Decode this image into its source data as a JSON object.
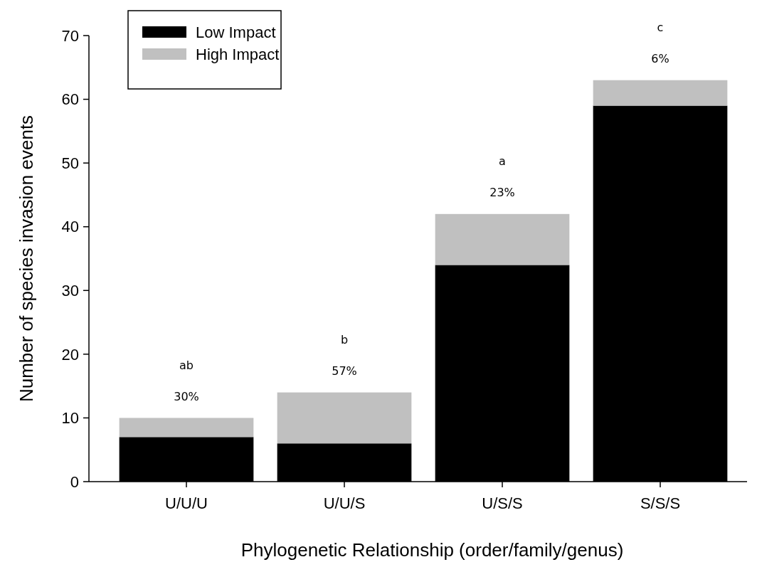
{
  "chart_data": {
    "type": "bar",
    "stacked": true,
    "xlabel": "Phylogenetic Relationship (order/family/genus)",
    "ylabel": "Number of species invasion events",
    "categories": [
      "U/U/U",
      "U/U/S",
      "U/S/S",
      "S/S/S"
    ],
    "series": [
      {
        "name": "Low Impact",
        "color": "#000000",
        "values": [
          7,
          6,
          34,
          59
        ]
      },
      {
        "name": "High Impact",
        "color": "#c0c0c0",
        "values": [
          3,
          8,
          8,
          4
        ]
      }
    ],
    "ylim": [
      0,
      70
    ],
    "yticks": [
      0,
      10,
      20,
      30,
      40,
      50,
      60,
      70
    ],
    "legend": "top left",
    "annotations": [
      "30%",
      "ab",
      "57%",
      "b",
      "23%",
      "a",
      "6%",
      "c"
    ]
  }
}
